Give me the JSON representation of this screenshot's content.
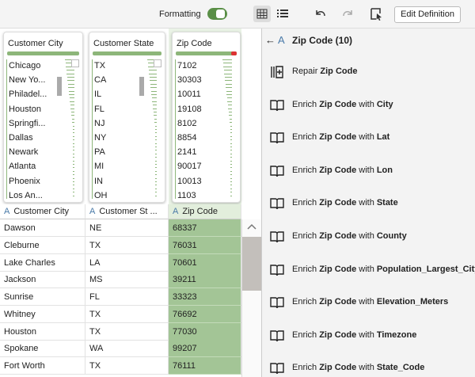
{
  "toolbar": {
    "formatting_label": "Formatting",
    "edit_button": "Edit Definition"
  },
  "profiles": [
    {
      "title": "Customer City",
      "values": [
        "Chicago",
        "New Yo...",
        "Philadel...",
        "Houston",
        "Springfi...",
        "Dallas",
        "Newark",
        "Atlanta",
        "Phoenix",
        "Los An..."
      ]
    },
    {
      "title": "Customer State",
      "values": [
        "TX",
        "CA",
        "IL",
        "FL",
        "NJ",
        "NY",
        "PA",
        "MI",
        "IN",
        "OH"
      ]
    },
    {
      "title": "Zip Code",
      "values": [
        "7102",
        "30303",
        "10011",
        "19108",
        "8102",
        "8854",
        "2141",
        "90017",
        "10013",
        "1103"
      ]
    }
  ],
  "table": {
    "headers": [
      {
        "icon": "A",
        "label": "Customer City"
      },
      {
        "icon": "A",
        "label": "Customer St ..."
      },
      {
        "icon": "A",
        "label": "Zip Code"
      }
    ],
    "rows": [
      [
        "Dawson",
        "NE",
        "68337"
      ],
      [
        "Cleburne",
        "TX",
        "76031"
      ],
      [
        "Lake Charles",
        "LA",
        "70601"
      ],
      [
        "Jackson",
        "MS",
        "39211"
      ],
      [
        "Sunrise",
        "FL",
        "33323"
      ],
      [
        "Whitney",
        "TX",
        "76692"
      ],
      [
        "Houston",
        "TX",
        "77030"
      ],
      [
        "Spokane",
        "WA",
        "99207"
      ],
      [
        "Fort Worth",
        "TX",
        "76111"
      ]
    ]
  },
  "panel": {
    "back": "←",
    "icon": "A",
    "title": "Zip Code (10)",
    "items": [
      {
        "verb": "Repair",
        "column": "Zip Code"
      },
      {
        "verb": "Enrich",
        "column": "Zip Code",
        "connector": "with",
        "target": "City"
      },
      {
        "verb": "Enrich",
        "column": "Zip Code",
        "connector": "with",
        "target": "Lat"
      },
      {
        "verb": "Enrich",
        "column": "Zip Code",
        "connector": "with",
        "target": "Lon"
      },
      {
        "verb": "Enrich",
        "column": "Zip Code",
        "connector": "with",
        "target": "State"
      },
      {
        "verb": "Enrich",
        "column": "Zip Code",
        "connector": "with",
        "target": "County"
      },
      {
        "verb": "Enrich",
        "column": "Zip Code",
        "connector": "with",
        "target": "Population_Largest_City"
      },
      {
        "verb": "Enrich",
        "column": "Zip Code",
        "connector": "with",
        "target": "Elevation_Meters"
      },
      {
        "verb": "Enrich",
        "column": "Zip Code",
        "connector": "with",
        "target": "Timezone"
      },
      {
        "verb": "Enrich",
        "column": "Zip Code",
        "connector": "with",
        "target": "State_Code"
      }
    ]
  }
}
